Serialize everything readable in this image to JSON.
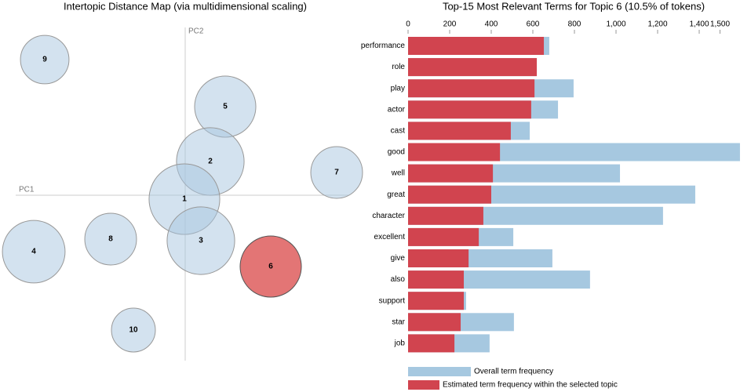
{
  "chart_data": [
    {
      "type": "bubble",
      "title": "Intertopic Distance Map (via multidimensional scaling)",
      "xlabel": "PC1",
      "ylabel": "PC2",
      "xlim": [
        -2.36,
        2.34
      ],
      "ylim": [
        -2.21,
        2.19
      ],
      "labels": [
        "9",
        "5",
        "2",
        "7",
        "1",
        "8",
        "4",
        "3",
        "6",
        "10"
      ],
      "x": [
        -1.79,
        0.51,
        0.32,
        1.93,
        -0.01,
        -0.95,
        -1.93,
        0.2,
        1.09,
        -0.66
      ],
      "y": [
        1.73,
        1.13,
        0.43,
        0.29,
        -0.05,
        -0.56,
        -0.72,
        -0.58,
        -0.91,
        -1.72
      ],
      "sizes": [
        6.6,
        10.5,
        12.8,
        7.5,
        14.0,
        7.5,
        11.0,
        12.8,
        10.5,
        5.4
      ],
      "colors": [
        "#a8c6df",
        "#a8c6df",
        "#a8c6df",
        "#a8c6df",
        "#a8c6df",
        "#a8c6df",
        "#a8c6df",
        "#a8c6df",
        "#e06666",
        "#a8c6df"
      ]
    },
    {
      "type": "bar",
      "orientation": "horizontal",
      "overlap": true,
      "title": "Top-15 Most Relevant Terms for Topic 6 (10.5% of tokens)",
      "categories": [
        "performance",
        "role",
        "play",
        "actor",
        "cast",
        "good",
        "well",
        "great",
        "character",
        "excellent",
        "give",
        "also",
        "support",
        "star",
        "job"
      ],
      "series": [
        {
          "name": "Overall term frequency",
          "color": "#a6c8e0",
          "values": [
            679,
            619,
            796,
            721,
            585,
            1596,
            1019,
            1381,
            1226,
            506,
            694,
            875,
            279,
            509,
            392
          ]
        },
        {
          "name": "Estimated term frequency within the selected topic",
          "color": "#d1444f",
          "values": [
            653,
            619,
            608,
            592,
            494,
            442,
            408,
            400,
            362,
            340,
            291,
            268,
            268,
            253,
            223
          ]
        }
      ],
      "xlim": [
        0,
        1600
      ],
      "xticks": [
        0,
        200,
        400,
        600,
        800,
        {
          "value": 1000,
          "label": "1,000"
        },
        {
          "value": 1200,
          "label": "1,200"
        },
        {
          "value": 1400,
          "label": "1,400"
        },
        {
          "value": 1500,
          "label": "1,500"
        }
      ]
    }
  ]
}
